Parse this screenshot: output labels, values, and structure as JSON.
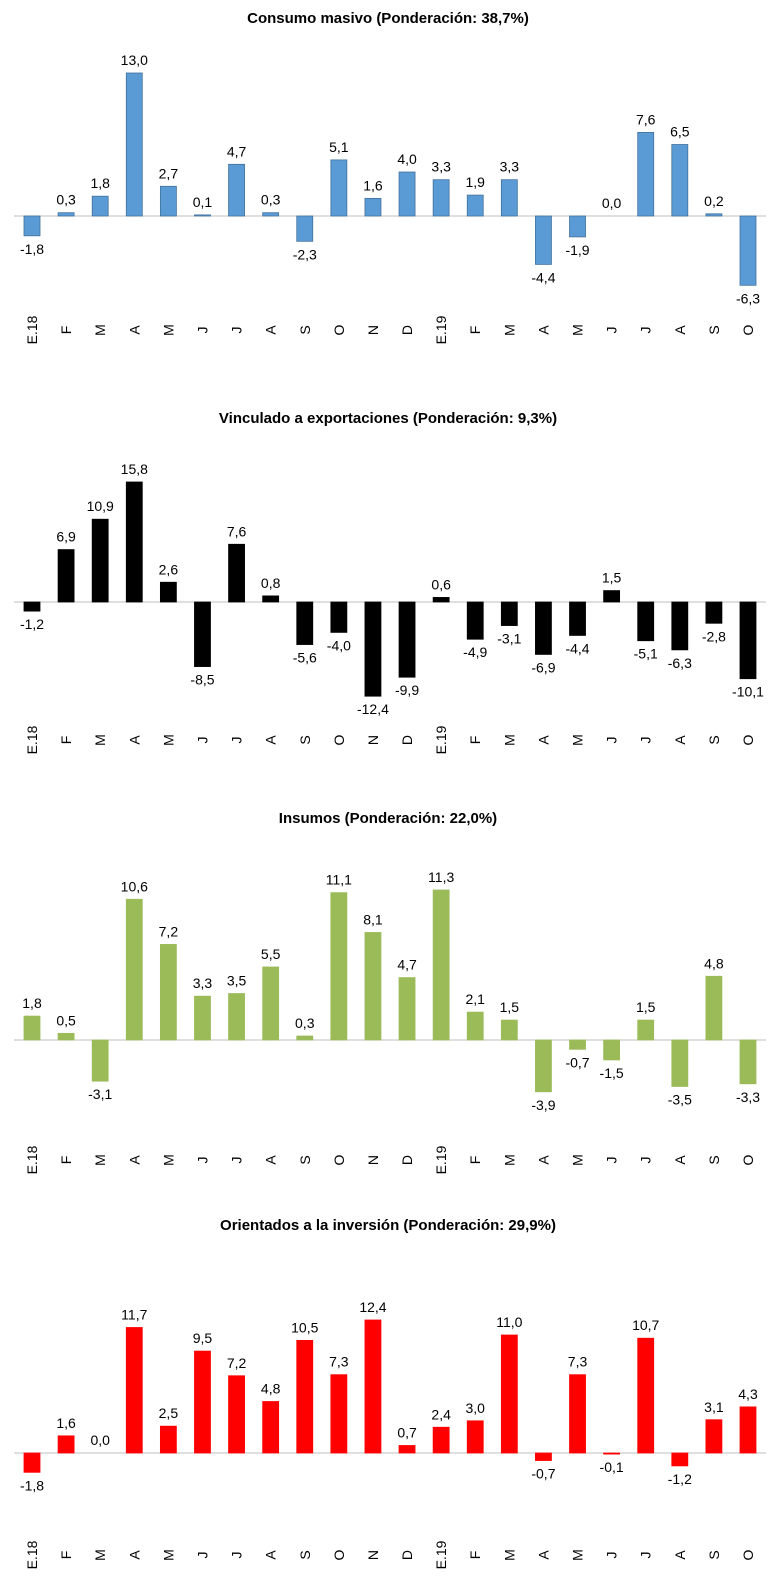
{
  "chart_data": [
    {
      "type": "bar",
      "title": "Consumo masivo (Ponderación: 38,7%)",
      "color": "#5b9bd5",
      "categories": [
        "E.18",
        "F",
        "M",
        "A",
        "M",
        "J",
        "J",
        "A",
        "S",
        "O",
        "N",
        "D",
        "E.19",
        "F",
        "M",
        "A",
        "M",
        "J",
        "J",
        "A",
        "S",
        "O"
      ],
      "values": [
        -1.8,
        0.3,
        1.8,
        13.0,
        2.7,
        0.1,
        4.7,
        0.3,
        -2.3,
        5.1,
        1.6,
        4.0,
        3.3,
        1.9,
        3.3,
        -4.4,
        -1.9,
        0.0,
        7.6,
        6.5,
        0.2,
        -6.3
      ],
      "value_labels": [
        "-1,8",
        "0,3",
        "1,8",
        "13,0",
        "2,7",
        "0,1",
        "4,7",
        "0,3",
        "-2,3",
        "5,1",
        "1,6",
        "4,0",
        "3,3",
        "1,9",
        "3,3",
        "-4,4",
        "-1,9",
        "0,0",
        "7,6",
        "6,5",
        "0,2",
        "-6,3"
      ]
    },
    {
      "type": "bar",
      "title": "Vinculado a exportaciones (Ponderación: 9,3%)",
      "color": "#000000",
      "categories": [
        "E.18",
        "F",
        "M",
        "A",
        "M",
        "J",
        "J",
        "A",
        "S",
        "O",
        "N",
        "D",
        "E.19",
        "F",
        "M",
        "A",
        "M",
        "J",
        "J",
        "A",
        "S",
        "O"
      ],
      "values": [
        -1.2,
        6.9,
        10.9,
        15.8,
        2.6,
        -8.5,
        7.6,
        0.8,
        -5.6,
        -4.0,
        -12.4,
        -9.9,
        0.6,
        -4.9,
        -3.1,
        -6.9,
        -4.4,
        1.5,
        -5.1,
        -6.3,
        -2.8,
        -10.1
      ],
      "value_labels": [
        "-1,2",
        "6,9",
        "10,9",
        "15,8",
        "2,6",
        "-8,5",
        "7,6",
        "0,8",
        "-5,6",
        "-4,0",
        "-12,4",
        "-9,9",
        "0,6",
        "-4,9",
        "-3,1",
        "-6,9",
        "-4,4",
        "1,5",
        "-5,1",
        "-6,3",
        "-2,8",
        "-10,1"
      ]
    },
    {
      "type": "bar",
      "title": "Insumos (Ponderación: 22,0%)",
      "color": "#9bbb59",
      "categories": [
        "E.18",
        "F",
        "M",
        "A",
        "M",
        "J",
        "J",
        "A",
        "S",
        "O",
        "N",
        "D",
        "E.19",
        "F",
        "M",
        "A",
        "M",
        "J",
        "J",
        "A",
        "S",
        "O"
      ],
      "values": [
        1.8,
        0.5,
        -3.1,
        10.6,
        7.2,
        3.3,
        3.5,
        5.5,
        0.3,
        11.1,
        8.1,
        4.7,
        11.3,
        2.1,
        1.5,
        -3.9,
        -0.7,
        -1.5,
        1.5,
        -3.5,
        4.8,
        -3.3
      ],
      "value_labels": [
        "1,8",
        "0,5",
        "-3,1",
        "10,6",
        "7,2",
        "3,3",
        "3,5",
        "5,5",
        "0,3",
        "11,1",
        "8,1",
        "4,7",
        "11,3",
        "2,1",
        "1,5",
        "-3,9",
        "-0,7",
        "-1,5",
        "1,5",
        "-3,5",
        "4,8",
        "-3,3"
      ]
    },
    {
      "type": "bar",
      "title": "Orientados a la inversión (Ponderación: 29,9%)",
      "color": "#ff0000",
      "categories": [
        "E.18",
        "F",
        "M",
        "A",
        "M",
        "J",
        "J",
        "A",
        "S",
        "O",
        "N",
        "D",
        "E.19",
        "F",
        "M",
        "A",
        "M",
        "J",
        "J",
        "A",
        "S",
        "O"
      ],
      "values": [
        -1.8,
        1.6,
        0.0,
        11.7,
        2.5,
        9.5,
        7.2,
        4.8,
        10.5,
        7.3,
        12.4,
        0.7,
        2.4,
        3.0,
        11.0,
        -0.7,
        7.3,
        -0.1,
        10.7,
        -1.2,
        3.1,
        4.3
      ],
      "value_labels": [
        "-1,8",
        "1,6",
        "0,0",
        "11,7",
        "2,5",
        "9,5",
        "7,2",
        "4,8",
        "10,5",
        "7,3",
        "12,4",
        "0,7",
        "2,4",
        "3,0",
        "11,0",
        "-0,7",
        "7,3",
        "-0,1",
        "10,7",
        "-1,2",
        "3,1",
        "4,3"
      ]
    }
  ]
}
